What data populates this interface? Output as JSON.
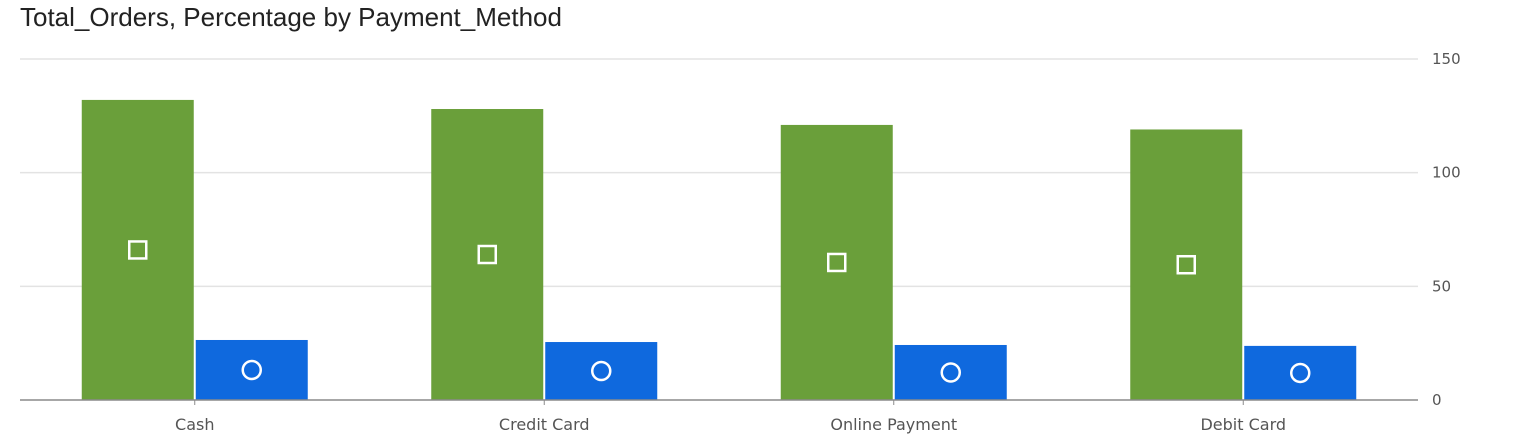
{
  "chart_data": {
    "type": "bar",
    "title": "Total_Orders, Percentage by Payment_Method",
    "categories": [
      "Cash",
      "Credit Card",
      "Online Payment",
      "Debit Card"
    ],
    "series": [
      {
        "values": [
          132,
          128,
          121,
          119
        ],
        "color": "#6a9f3a",
        "marker": "square"
      },
      {
        "values": [
          26.4,
          25.5,
          24.2,
          23.8
        ],
        "color": "#0f69de",
        "marker": "circle"
      }
    ],
    "xlabel": "",
    "ylabel": "",
    "ylim": [
      0,
      150
    ],
    "yticks": [
      0,
      50,
      100,
      150
    ],
    "y_axis_position": "right",
    "grid": true
  }
}
